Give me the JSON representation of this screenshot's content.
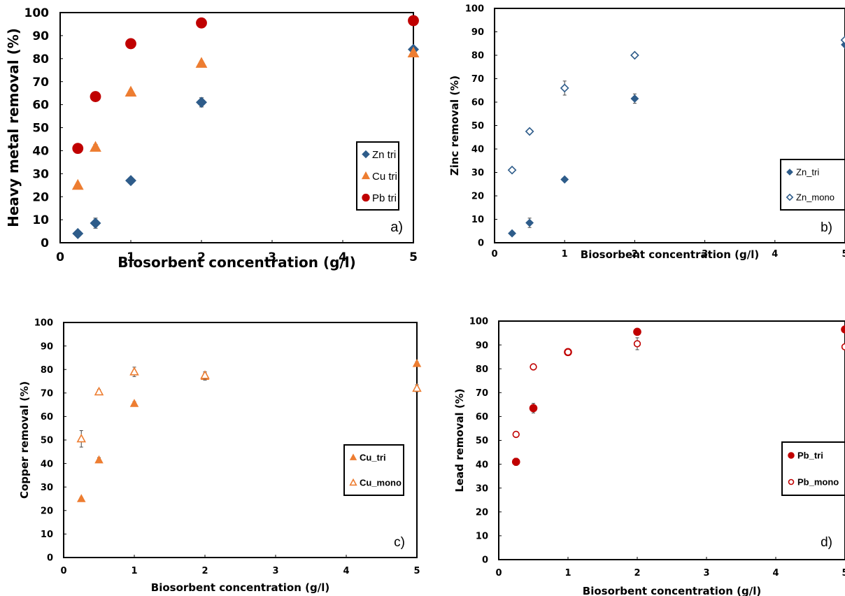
{
  "chart_data": [
    {
      "type": "scatter",
      "panel_label": "a)",
      "xlabel": "Biosorbent concentration (g/l)",
      "ylabel": "Heavy metal removal (%)",
      "xlim": [
        0,
        5
      ],
      "ylim": [
        0,
        100
      ],
      "xticks": [
        "0",
        "1",
        "2",
        "3",
        "4",
        "5"
      ],
      "yticks": [
        "0",
        "10",
        "20",
        "30",
        "40",
        "50",
        "60",
        "70",
        "80",
        "90",
        "100"
      ],
      "legend_position": "right",
      "series": [
        {
          "name": "Zn tri",
          "marker": "diamond",
          "color": "#2E5C8A",
          "x": [
            0.25,
            0.5,
            1,
            2,
            5
          ],
          "y": [
            4,
            8.5,
            27,
            61,
            84
          ],
          "err": [
            0.8,
            2.2,
            0.8,
            2,
            1
          ]
        },
        {
          "name": "Cu tri",
          "marker": "triangle",
          "color": "#ED7D31",
          "x": [
            0.25,
            0.5,
            1,
            2,
            5
          ],
          "y": [
            25,
            41.5,
            65.5,
            78,
            82.5
          ],
          "err": [
            0.8,
            1.2,
            1,
            1,
            1
          ]
        },
        {
          "name": "Pb tri",
          "marker": "circle",
          "color": "#C00000",
          "x": [
            0.25,
            0.5,
            1,
            2,
            5
          ],
          "y": [
            41,
            63.5,
            86.5,
            95.5,
            96.5
          ],
          "err": [
            1.5,
            2,
            0.8,
            0.8,
            0.5
          ]
        }
      ]
    },
    {
      "type": "scatter",
      "panel_label": "b)",
      "xlabel": "Biosorbent concentration (g/l)",
      "ylabel": "Zinc removal (%)",
      "xlim": [
        0,
        5
      ],
      "ylim": [
        0,
        100
      ],
      "xticks": [
        "0",
        "1",
        "2",
        "3",
        "4",
        "5"
      ],
      "yticks": [
        "0",
        "10",
        "20",
        "30",
        "40",
        "50",
        "60",
        "70",
        "80",
        "90",
        "100"
      ],
      "legend_position": "right",
      "series": [
        {
          "name": "Zn_tri",
          "marker": "diamond",
          "color": "#2E5C8A",
          "x": [
            0.25,
            0.5,
            1,
            2,
            5
          ],
          "y": [
            4,
            8.5,
            27,
            61.5,
            84.5
          ],
          "err": [
            0.5,
            2,
            0.8,
            2,
            1
          ]
        },
        {
          "name": "Zn_mono",
          "marker": "diamond-open",
          "color": "#2E5C8A",
          "x": [
            0.25,
            0.5,
            1,
            2,
            5
          ],
          "y": [
            31,
            47.5,
            66,
            80,
            86.5
          ],
          "err": [
            0.8,
            0.8,
            3,
            0.8,
            0.8
          ]
        }
      ]
    },
    {
      "type": "scatter",
      "panel_label": "c)",
      "xlabel": "Biosorbent concentration (g/l)",
      "ylabel": "Copper removal (%)",
      "xlim": [
        0,
        5
      ],
      "ylim": [
        0,
        100
      ],
      "xticks": [
        "0",
        "1",
        "2",
        "3",
        "4",
        "5"
      ],
      "yticks": [
        "0",
        "10",
        "20",
        "30",
        "40",
        "50",
        "60",
        "70",
        "80",
        "90",
        "100"
      ],
      "legend_position": "right",
      "series": [
        {
          "name": "Cu_tri",
          "marker": "triangle",
          "color": "#ED7D31",
          "x": [
            0.25,
            0.5,
            1,
            2,
            5
          ],
          "y": [
            25,
            41.5,
            65.5,
            77,
            82.5
          ],
          "err": [
            0.6,
            1,
            0.8,
            1.5,
            0.8
          ]
        },
        {
          "name": "Cu_mono",
          "marker": "triangle-open",
          "color": "#ED7D31",
          "x": [
            0.25,
            0.5,
            1,
            2,
            5
          ],
          "y": [
            50.5,
            70.5,
            79,
            77.5,
            72
          ],
          "err": [
            3.5,
            1,
            2,
            1.5,
            1.5
          ]
        }
      ]
    },
    {
      "type": "scatter",
      "panel_label": "d)",
      "xlabel": "Biosorbent concentration (g/l)",
      "ylabel": "Lead removal (%)",
      "xlim": [
        0,
        5
      ],
      "ylim": [
        0,
        100
      ],
      "xticks": [
        "0",
        "1",
        "2",
        "3",
        "4",
        "5"
      ],
      "yticks": [
        "0",
        "10",
        "20",
        "30",
        "40",
        "50",
        "60",
        "70",
        "80",
        "90",
        "100"
      ],
      "legend_position": "right",
      "series": [
        {
          "name": "Pb_tri",
          "marker": "circle",
          "color": "#C00000",
          "x": [
            0.25,
            0.5,
            1,
            2,
            5
          ],
          "y": [
            41,
            63.5,
            87,
            95.5,
            96.5
          ],
          "err": [
            1.5,
            2,
            1,
            0.8,
            0.5
          ]
        },
        {
          "name": "Pb_mono",
          "marker": "circle-open",
          "color": "#C00000",
          "x": [
            0.25,
            0.5,
            1,
            2,
            5
          ],
          "y": [
            52.5,
            80.8,
            87,
            90.5,
            89.2
          ],
          "err": [
            0.8,
            0.8,
            1,
            2.5,
            0.8
          ]
        }
      ]
    }
  ]
}
